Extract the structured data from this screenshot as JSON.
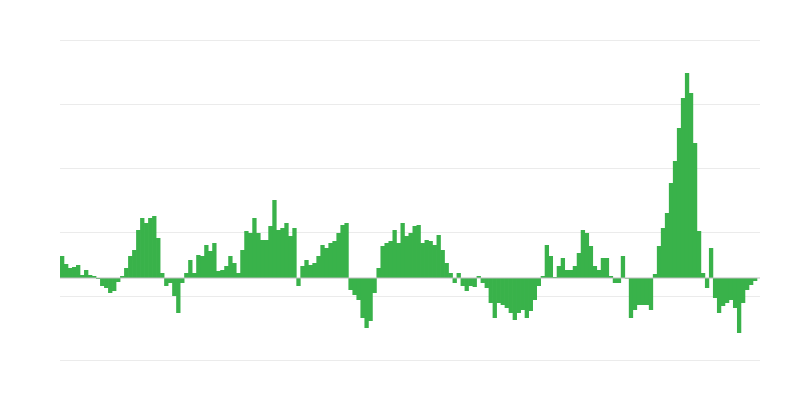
{
  "chart_data": {
    "type": "bar",
    "title": "",
    "xlabel": "",
    "ylabel": "",
    "grid": true,
    "legend": "none",
    "ylim": [
      -82,
      238
    ],
    "grid_step": 64,
    "bar_color": "#39b24a",
    "grid_color": "#ebebeb",
    "values": [
      22,
      14,
      10,
      11,
      13,
      3,
      8,
      3,
      2,
      -1,
      -8,
      -10,
      -15,
      -13,
      -4,
      2,
      10,
      22,
      28,
      48,
      60,
      55,
      60,
      62,
      40,
      5,
      -8,
      -5,
      -18,
      -35,
      -5,
      5,
      18,
      5,
      23,
      22,
      33,
      27,
      35,
      7,
      8,
      12,
      22,
      15,
      5,
      28,
      47,
      45,
      60,
      45,
      38,
      38,
      52,
      78,
      48,
      50,
      55,
      42,
      50,
      -8,
      12,
      18,
      13,
      15,
      22,
      33,
      30,
      35,
      37,
      45,
      53,
      55,
      -12,
      -17,
      -22,
      -40,
      -50,
      -43,
      -15,
      10,
      32,
      35,
      37,
      48,
      35,
      55,
      42,
      45,
      52,
      53,
      35,
      38,
      37,
      33,
      43,
      28,
      15,
      5,
      -5,
      5,
      -8,
      -13,
      -8,
      -9,
      2,
      -5,
      -10,
      -25,
      -40,
      -25,
      -27,
      -30,
      -35,
      -42,
      -35,
      -32,
      -40,
      -33,
      -22,
      -8,
      2,
      33,
      22,
      1,
      12,
      20,
      8,
      8,
      12,
      25,
      48,
      45,
      32,
      12,
      8,
      20,
      20,
      2,
      -5,
      -5,
      22,
      0,
      -40,
      -32,
      -27,
      -27,
      -27,
      -32,
      4,
      32,
      50,
      65,
      95,
      117,
      150,
      180,
      205,
      185,
      135,
      47,
      5,
      -10,
      30,
      -20,
      -35,
      -28,
      -25,
      -22,
      -30,
      -55,
      -25,
      -12,
      -7,
      -3
    ]
  }
}
